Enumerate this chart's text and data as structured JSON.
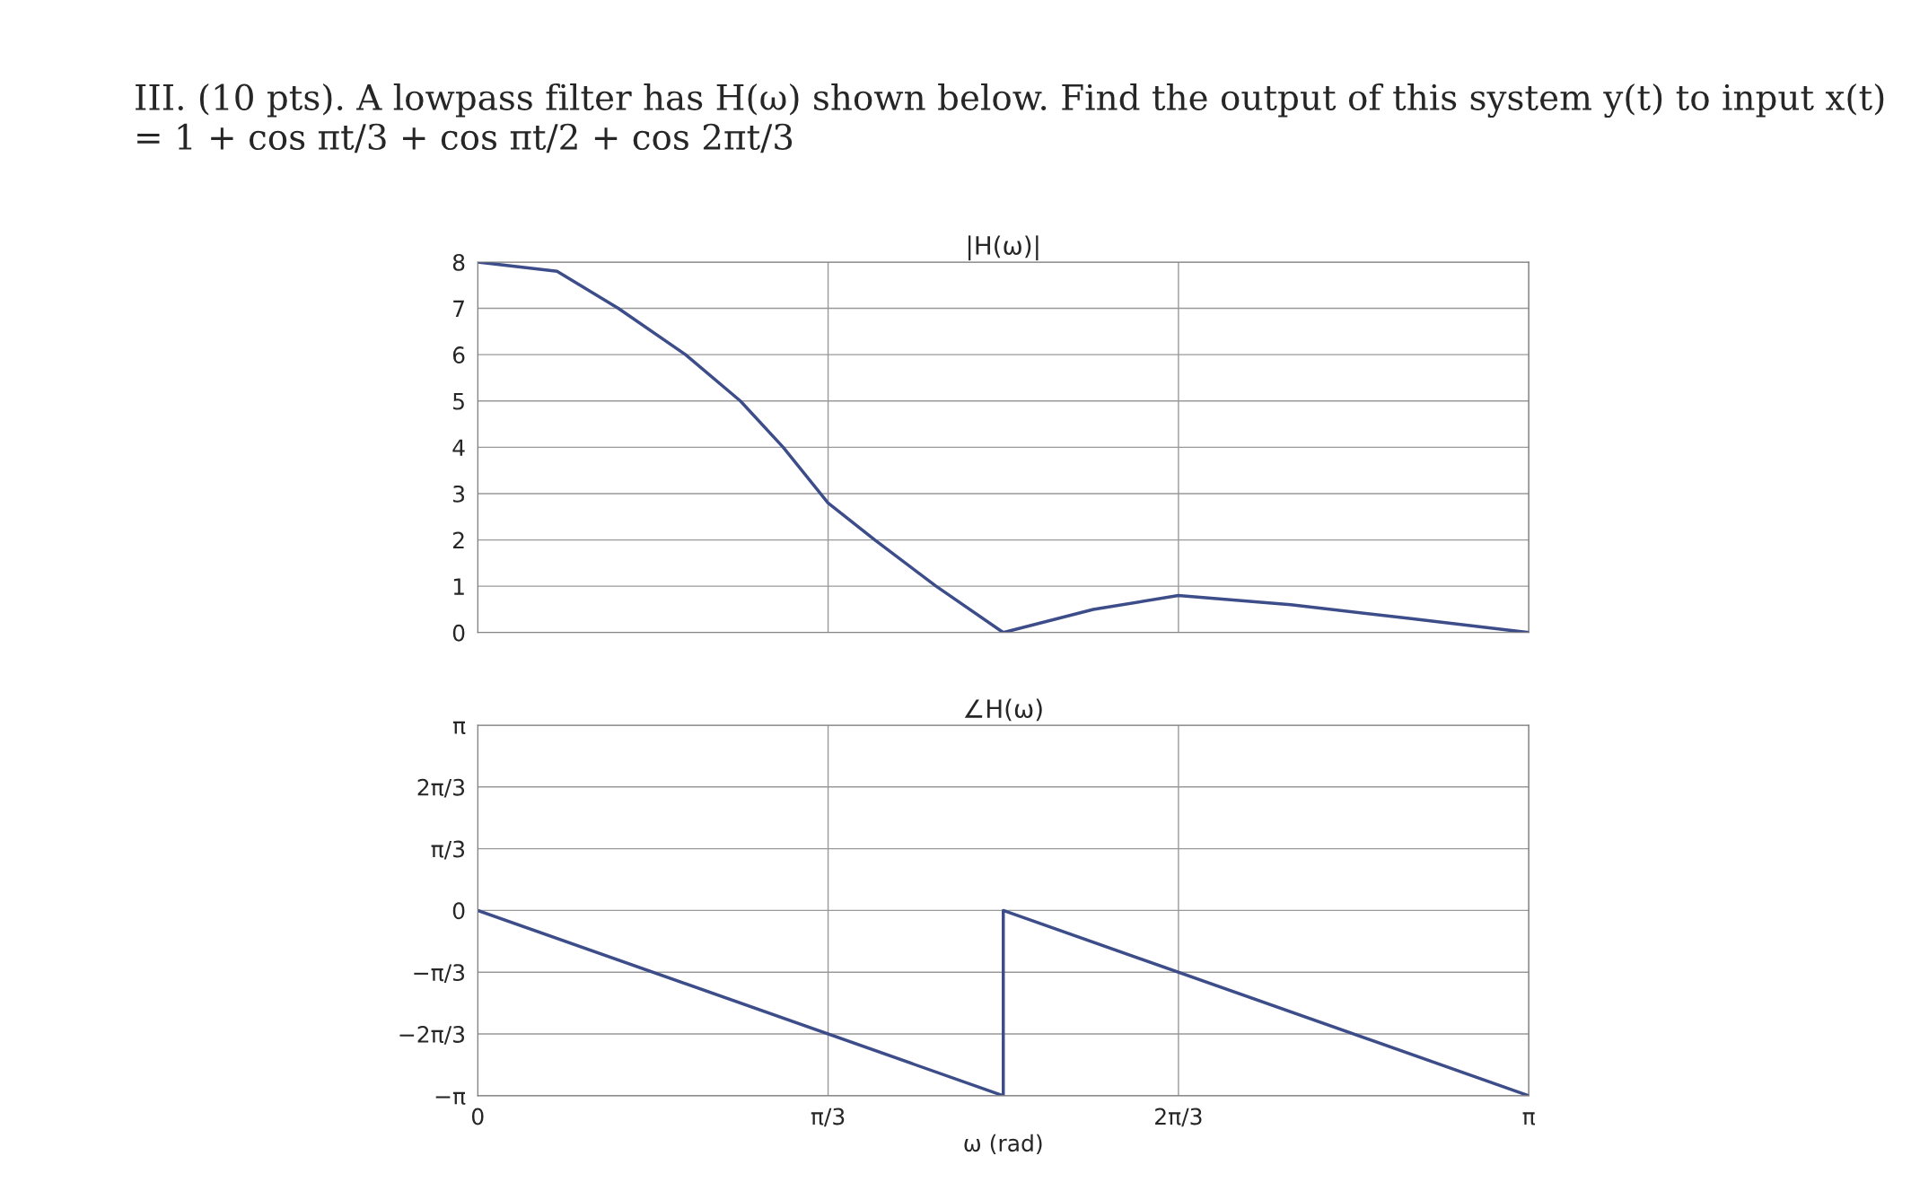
{
  "chart_data": [
    {
      "type": "line",
      "title": "|H(ω)|",
      "annotations": [
        "III. (10 pts). A lowpass filter has H(ω) shown below. Find the output of this system y(t) to input x(t) = 1 + cos πt/3 + cos πt/2 + cos 2πt/3"
      ],
      "series": [
        {
          "color": "#3d4d8a",
          "x": [
            0,
            0.237,
            0.42,
            0.621,
            0.785,
            0.913,
            1.047,
            1.187,
            1.37,
            1.5708,
            1.84,
            2.094,
            2.43,
            2.79,
            3.1416
          ],
          "values": [
            8,
            7.8,
            7.0,
            6.0,
            5.0,
            4.0,
            2.8,
            2.0,
            1.0,
            0,
            0.5,
            0.8,
            0.6,
            0.3,
            0
          ]
        }
      ],
      "xlim": [
        0,
        3.1416
      ],
      "xticks": [
        {
          "value": 0,
          "label": null
        },
        {
          "value": 1.0472,
          "label": null
        },
        {
          "value": 2.0944,
          "label": null
        },
        {
          "value": 3.1416,
          "label": null
        }
      ],
      "ylim": [
        0,
        8
      ],
      "yticks": [
        0,
        1,
        2,
        3,
        4,
        5,
        6,
        7,
        8
      ],
      "grid": true,
      "tick_labels": "y",
      "marker": "none",
      "line_style": "solid"
    },
    {
      "type": "line",
      "title": "∠H(ω)",
      "xlabel": "ω (rad)",
      "series": [
        {
          "color": "#3d4d8a",
          "x": [
            0,
            1.5708,
            1.5708,
            3.1416
          ],
          "values": [
            0,
            -3.1416,
            0,
            -3.1416
          ]
        }
      ],
      "xlim": [
        0,
        3.1416
      ],
      "xticks": [
        0,
        {
          "value": 1.0472,
          "label": "π/3"
        },
        {
          "value": 2.0944,
          "label": "2π/3"
        },
        {
          "value": 3.1416,
          "label": "π"
        }
      ],
      "ylim": [
        -3.1416,
        3.1416
      ],
      "yticks": [
        {
          "value": -3.1416,
          "label": "−π"
        },
        {
          "value": -2.0944,
          "label": "−2π/3"
        },
        {
          "value": -1.0472,
          "label": "−π/3"
        },
        0,
        {
          "value": 1.0472,
          "label": "π/3"
        },
        {
          "value": 2.0944,
          "label": "2π/3"
        },
        {
          "value": 3.1416,
          "label": "π"
        }
      ],
      "grid": true,
      "marker": "none",
      "line_style": "solid"
    }
  ]
}
